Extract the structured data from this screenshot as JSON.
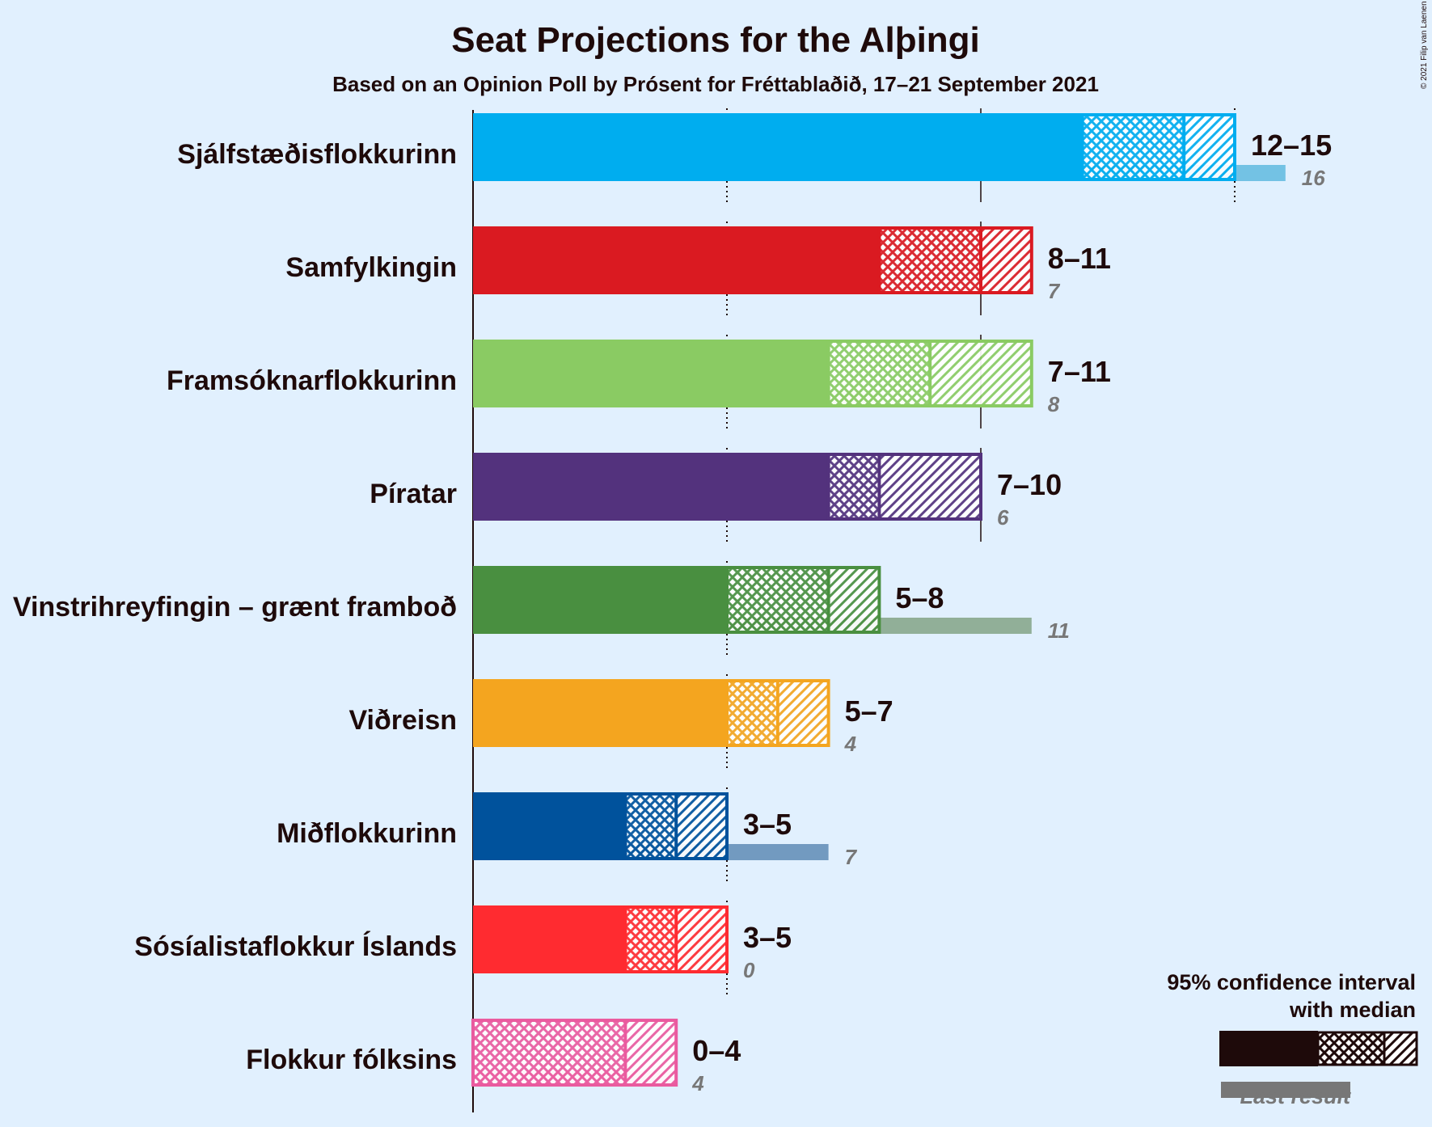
{
  "title": "Seat Projections for the Alþingi",
  "subtitle": "Based on an Opinion Poll by Prósent for Fréttablaðið, 17–21 September 2021",
  "copyright": "© 2021 Filip van Laenen",
  "legend": {
    "ci_line1": "95% confidence interval",
    "ci_line2": "with median",
    "last_result": "Last result",
    "color": "#1e0a0a"
  },
  "chart_data": {
    "type": "bar",
    "orientation": "horizontal",
    "x_range": [
      0,
      16
    ],
    "gridlines": [
      5,
      10,
      15
    ],
    "majority_line": 15,
    "categories": [
      "Sjálfstæðisflokkurinn",
      "Samfylkingin",
      "Framsóknarflokkurinn",
      "Píratar",
      "Vinstrihreyfingin – grænt framboð",
      "Viðreisn",
      "Miðflokkurinn",
      "Sósíalistaflokkur Íslands",
      "Flokkur fólksins"
    ],
    "parties": [
      {
        "name": "Sjálfstæðisflokkurinn",
        "low": 12,
        "median": 14,
        "high": 15,
        "range_label": "12–15",
        "last": 16,
        "last_label": "16",
        "color": "#00adef",
        "last_color": "#73c2e4"
      },
      {
        "name": "Samfylkingin",
        "low": 8,
        "median": 10,
        "high": 11,
        "range_label": "8–11",
        "last": 7,
        "last_label": "7",
        "color": "#da1a21",
        "last_color": "#c8858d"
      },
      {
        "name": "Framsóknarflokkurinn",
        "low": 7,
        "median": 9,
        "high": 11,
        "range_label": "7–11",
        "last": 8,
        "last_label": "8",
        "color": "#8acb63",
        "last_color": "#b2d9a8"
      },
      {
        "name": "Píratar",
        "low": 7,
        "median": 8,
        "high": 10,
        "range_label": "7–10",
        "last": 6,
        "last_label": "6",
        "color": "#53327d",
        "last_color": "#9690b2"
      },
      {
        "name": "Vinstrihreyfingin – grænt framboð",
        "low": 5,
        "median": 7,
        "high": 8,
        "range_label": "5–8",
        "last": 11,
        "last_label": "11",
        "color": "#498f40",
        "last_color": "#91af98"
      },
      {
        "name": "Viðreisn",
        "low": 5,
        "median": 6,
        "high": 7,
        "range_label": "5–7",
        "last": 4,
        "last_label": "4",
        "color": "#f4a51f",
        "last_color": "#dfc38f"
      },
      {
        "name": "Miðflokkurinn",
        "low": 3,
        "median": 4,
        "high": 5,
        "range_label": "3–5",
        "last": 7,
        "last_label": "7",
        "color": "#00529c",
        "last_color": "#729ac0"
      },
      {
        "name": "Sósíalistaflokkur Íslands",
        "low": 3,
        "median": 4,
        "high": 5,
        "range_label": "3–5",
        "last": 0,
        "last_label": "0",
        "color": "#ff2b30",
        "last_color": "#e4a0a4"
      },
      {
        "name": "Flokkur fólksins",
        "low": 0,
        "median": 3,
        "high": 4,
        "range_label": "0–4",
        "last": 4,
        "last_label": "4",
        "color": "#ea5b9f",
        "last_color": "#e79ec5"
      }
    ]
  }
}
